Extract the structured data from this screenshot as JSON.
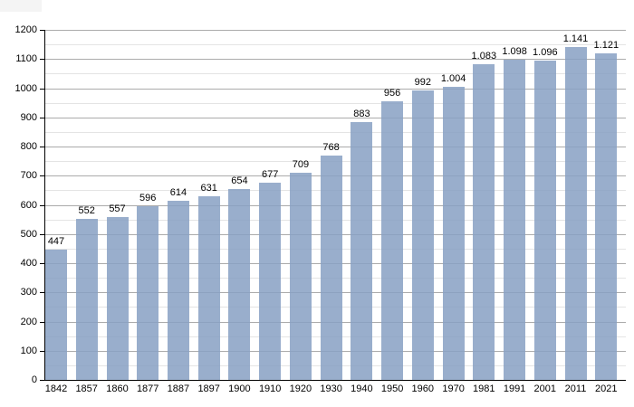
{
  "page": {
    "background": "#ffffff"
  },
  "chart_data": {
    "type": "bar",
    "title": "",
    "xlabel": "",
    "ylabel": "",
    "categories": [
      "1842",
      "1857",
      "1860",
      "1877",
      "1887",
      "1897",
      "1900",
      "1910",
      "1920",
      "1930",
      "1940",
      "1950",
      "1960",
      "1970",
      "1981",
      "1991",
      "2001",
      "2011",
      "2021"
    ],
    "values": [
      447,
      552,
      557,
      596,
      614,
      631,
      654,
      677,
      709,
      768,
      883,
      956,
      992,
      1004,
      1083,
      1098,
      1096,
      1141,
      1121
    ],
    "value_labels": [
      "447",
      "552",
      "557",
      "596",
      "614",
      "631",
      "654",
      "677",
      "709",
      "768",
      "883",
      "956",
      "992",
      "1.004",
      "1.083",
      "1.098",
      "1.096",
      "1.141",
      "1.121"
    ],
    "ylim": [
      0,
      1200
    ],
    "ytick_step": 100,
    "yminor_step": 50,
    "ytick_labels": [
      "0",
      "100",
      "200",
      "300",
      "400",
      "500",
      "600",
      "700",
      "800",
      "900",
      "1000",
      "1100",
      "1200"
    ],
    "grid": true,
    "legend": false,
    "colors": {
      "bar_fill": "rgba(135,160,195,0.85)",
      "bar_fill_hex": "#99aecc",
      "major_grid": "#ababab",
      "minor_grid": "#e4e4e4",
      "axis": "#000000",
      "text": "#000000"
    }
  }
}
